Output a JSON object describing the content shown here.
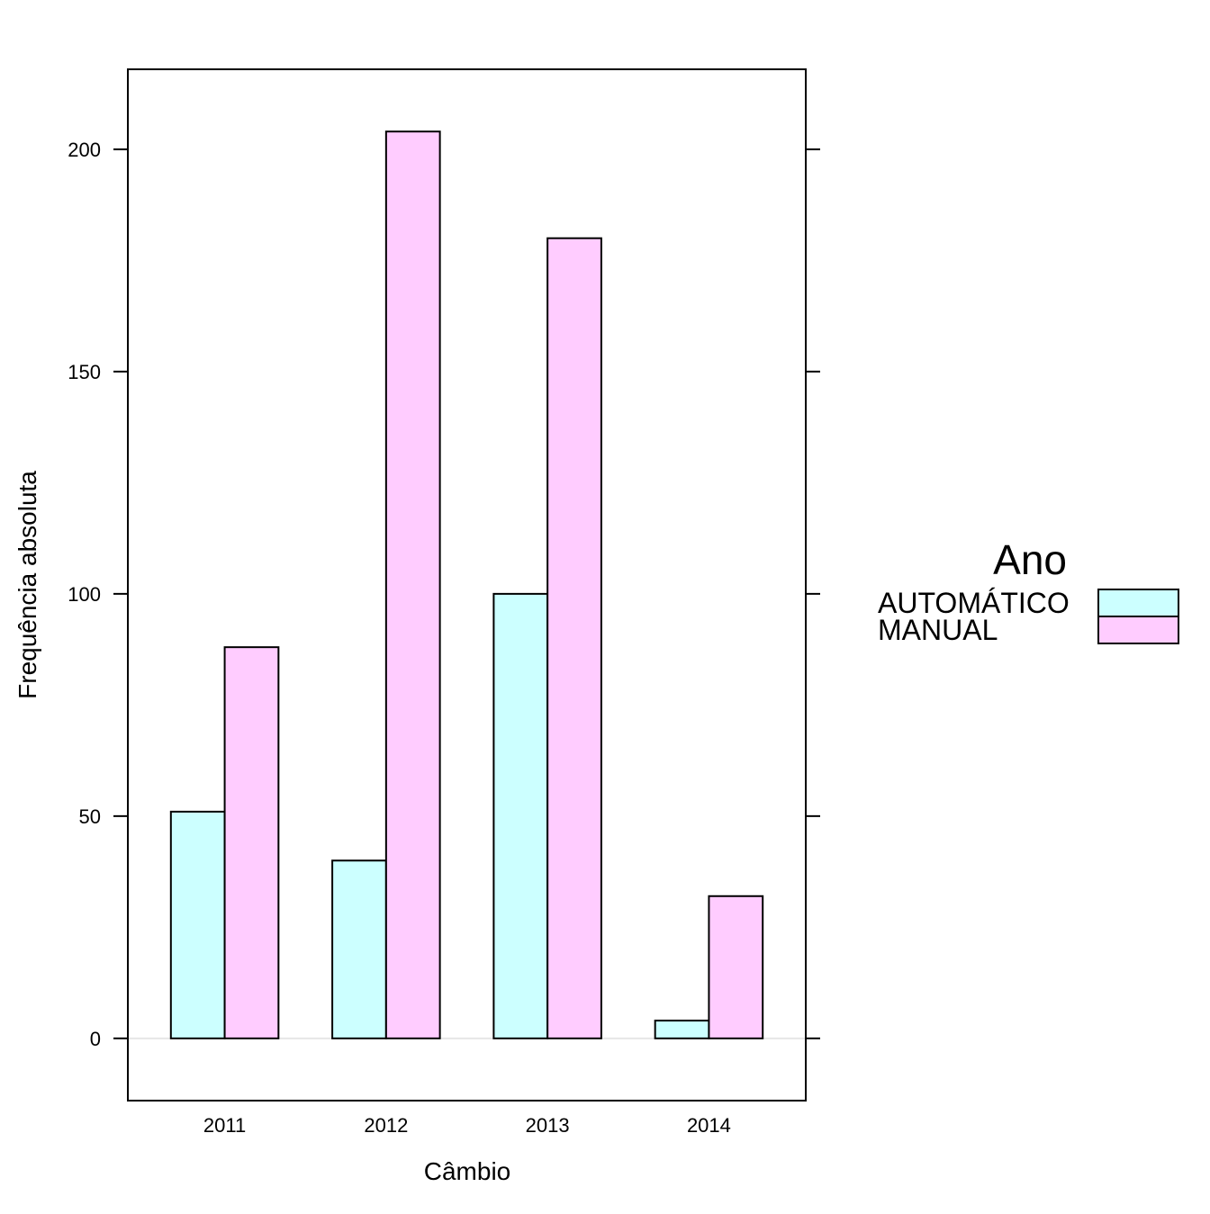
{
  "chart_data": {
    "type": "bar",
    "title": "",
    "xlabel": "Câmbio",
    "ylabel": "Frequência absoluta",
    "categories": [
      "2011",
      "2012",
      "2013",
      "2014"
    ],
    "series": [
      {
        "name": "AUTOMÁTICO",
        "values": [
          51,
          40,
          100,
          4
        ],
        "color": "#ccffff"
      },
      {
        "name": "MANUAL",
        "values": [
          88,
          204,
          180,
          32
        ],
        "color": "#ffccff"
      }
    ],
    "ylim": [
      -14,
      218
    ],
    "yticks": [
      0,
      50,
      100,
      150,
      200
    ],
    "grid": false,
    "legend": {
      "title": "Ano",
      "placement": "right"
    }
  }
}
